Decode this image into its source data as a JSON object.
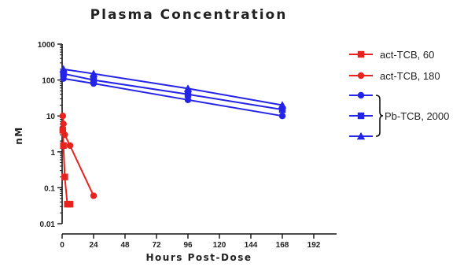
{
  "chart_data": {
    "type": "line",
    "title": "Plasma Concentration",
    "xlabel": "Hours Post-Dose",
    "ylabel": "nM",
    "xlim": [
      0,
      204
    ],
    "ylim": [
      0.01,
      1000
    ],
    "yscale": "log",
    "x_ticks": [
      0,
      24,
      48,
      72,
      96,
      120,
      144,
      168,
      192
    ],
    "y_ticks": [
      {
        "value": 0.01,
        "label": "0.01"
      },
      {
        "value": 0.1,
        "label": "0.1"
      },
      {
        "value": 1,
        "label": "1"
      },
      {
        "value": 10,
        "label": "10"
      },
      {
        "value": 100,
        "label": "100"
      },
      {
        "value": 1000,
        "label": "1000"
      }
    ],
    "grid": false,
    "legend_position": "right",
    "series": [
      {
        "name": "act-TCB, 60",
        "color": "#e8231f",
        "marker": "square",
        "x": [
          0.5,
          1,
          2,
          4,
          6
        ],
        "y": [
          4,
          1.5,
          0.2,
          0.035,
          0.035
        ]
      },
      {
        "name": "act-TCB, 180",
        "color": "#e8231f",
        "marker": "circle",
        "x": [
          0.5,
          1,
          2,
          6,
          24
        ],
        "y": [
          10,
          6,
          3,
          1.5,
          0.06
        ]
      },
      {
        "name": "",
        "color": "#2424e8",
        "marker": "circle",
        "x": [
          1,
          24,
          96,
          168
        ],
        "y": [
          110,
          80,
          28,
          10
        ]
      },
      {
        "name": "",
        "color": "#2424e8",
        "marker": "square",
        "x": [
          1,
          24,
          96,
          168
        ],
        "y": [
          150,
          100,
          40,
          15
        ]
      },
      {
        "name": "",
        "color": "#2424e8",
        "marker": "triangle",
        "x": [
          1,
          24,
          96,
          168
        ],
        "y": [
          200,
          150,
          58,
          20
        ]
      }
    ],
    "legend": [
      {
        "label": "act-TCB, 60",
        "color": "#e8231f",
        "marker": "square"
      },
      {
        "label": "act-TCB, 180",
        "color": "#e8231f",
        "marker": "circle"
      },
      {
        "label": "Pb-TCB, 2000",
        "color": "#2424e8",
        "markers": [
          "circle",
          "square",
          "triangle"
        ]
      }
    ]
  }
}
